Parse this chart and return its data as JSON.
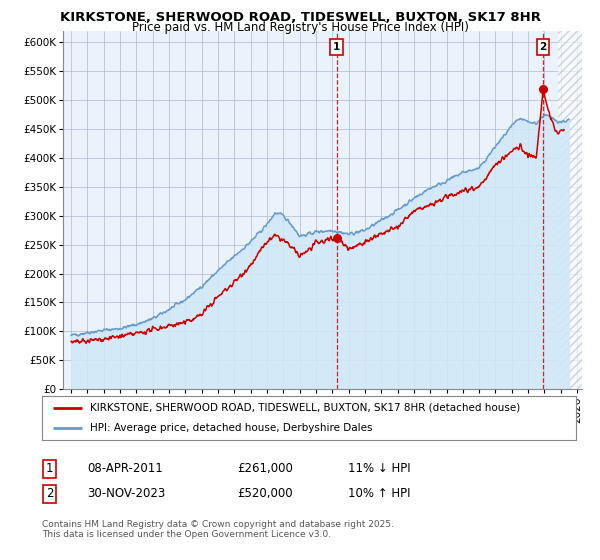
{
  "title": "KIRKSTONE, SHERWOOD ROAD, TIDESWELL, BUXTON, SK17 8HR",
  "subtitle": "Price paid vs. HM Land Registry's House Price Index (HPI)",
  "legend_label_red": "KIRKSTONE, SHERWOOD ROAD, TIDESWELL, BUXTON, SK17 8HR (detached house)",
  "legend_label_blue": "HPI: Average price, detached house, Derbyshire Dales",
  "annotation1_date": "08-APR-2011",
  "annotation1_price": "£261,000",
  "annotation1_hpi": "11% ↓ HPI",
  "annotation2_date": "30-NOV-2023",
  "annotation2_price": "£520,000",
  "annotation2_hpi": "10% ↑ HPI",
  "footnote": "Contains HM Land Registry data © Crown copyright and database right 2025.\nThis data is licensed under the Open Government Licence v3.0.",
  "ylim": [
    0,
    620000
  ],
  "xlim_start": 1994.5,
  "xlim_end": 2026.3,
  "sale1_x": 2011.27,
  "sale1_y": 261000,
  "sale2_x": 2023.92,
  "sale2_y": 520000,
  "hatch_start": 2024.85,
  "bg_color": "#eaf3fb",
  "fill_color": "#d0e8f8",
  "line_color_red": "#cc0000",
  "line_color_blue": "#6699cc",
  "grid_color": "#b0b8cc",
  "hatch_color": "#b0b8cc",
  "title_fontsize": 9.5,
  "subtitle_fontsize": 8.5,
  "legend_fontsize": 7.5,
  "tick_fontsize": 7.5,
  "table_fontsize": 8.5,
  "footnote_fontsize": 6.5
}
